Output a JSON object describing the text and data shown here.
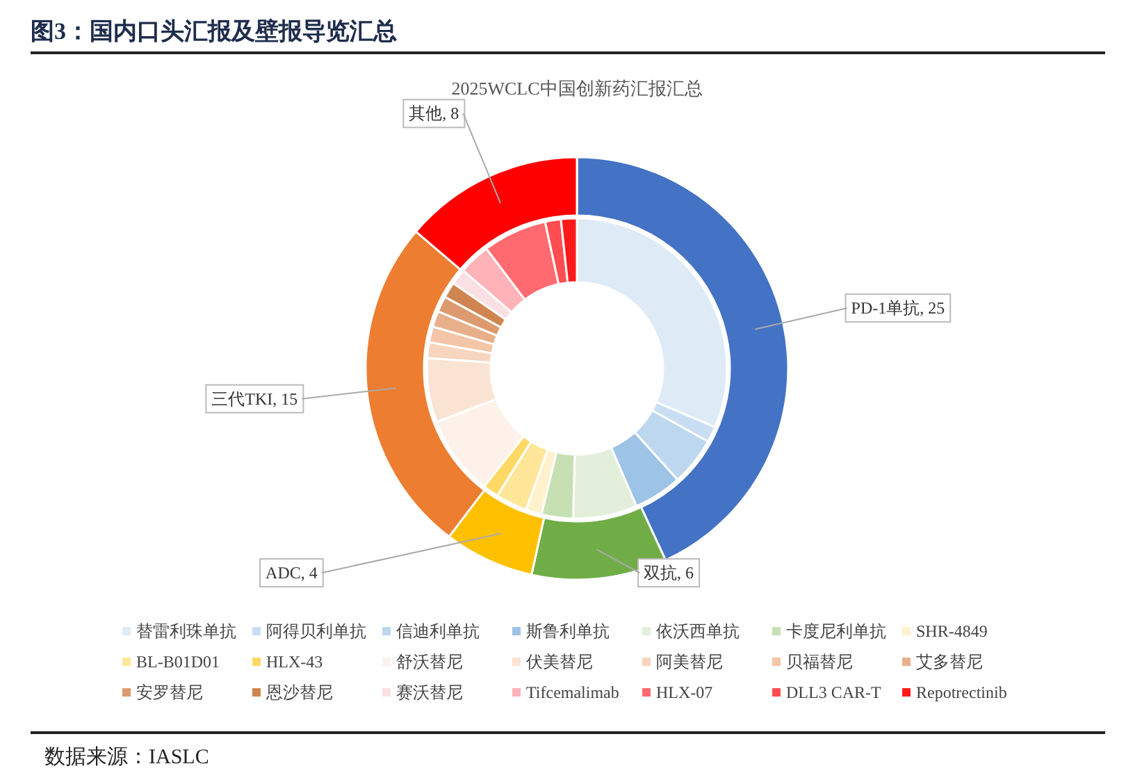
{
  "chart_data": [
    {
      "type": "donut",
      "title": "图3：国内口头汇报及壁报导览汇总",
      "subtitle": "2025WCLC中国创新药汇报汇总",
      "annotations": [
        "数据来源：IASLC"
      ],
      "values": [
        25,
        6,
        4,
        15,
        8
      ],
      "value_labels": [
        "PD-1单抗, 25",
        "双抗, 6",
        "ADC, 4",
        "三代TKI, 15",
        "其他, 8"
      ],
      "colors": [
        "#4472c4",
        "#70ad47",
        "#ffc000",
        "#ed7d31",
        "#ff0000"
      ]
    },
    {
      "type": "donut",
      "legend": "bottom",
      "categories": [
        "替雷利珠单抗",
        "阿得贝利单抗",
        "信迪利单抗",
        "斯鲁利单抗",
        "依沃西单抗",
        "卡度尼利单抗",
        "SHR-4849",
        "BL-B01D01",
        "HLX-43",
        "舒沃替尼",
        "伏美替尼",
        "阿美替尼",
        "贝福替尼",
        "艾多替尼",
        "安罗替尼",
        "恩沙替尼",
        "赛沃替尼",
        "Tifcemalimab",
        "HLX-07",
        "DLL3 CAR-T",
        "Repotrectinib"
      ],
      "values": [
        31.4,
        1.7,
        5.2,
        5.2,
        6.9,
        3.4,
        1.7,
        3.4,
        1.7,
        8.6,
        6.9,
        1.7,
        1.7,
        1.7,
        1.7,
        1.7,
        1.7,
        3.4,
        6.9,
        1.7,
        1.7
      ],
      "colors": [
        "#deebf7",
        "#c9def2",
        "#bdd7ee",
        "#9dc3e6",
        "#e2efda",
        "#c6e0b4",
        "#fff2cc",
        "#ffe699",
        "#ffd966",
        "#fdf1e9",
        "#fbe3d4",
        "#f8d5be",
        "#f4c5a6",
        "#e8b08a",
        "#dd9a6e",
        "#d08550",
        "#fbe0e3",
        "#ffb3b8",
        "#ff6b70",
        "#ff4d52",
        "#ff1a1a"
      ]
    }
  ]
}
